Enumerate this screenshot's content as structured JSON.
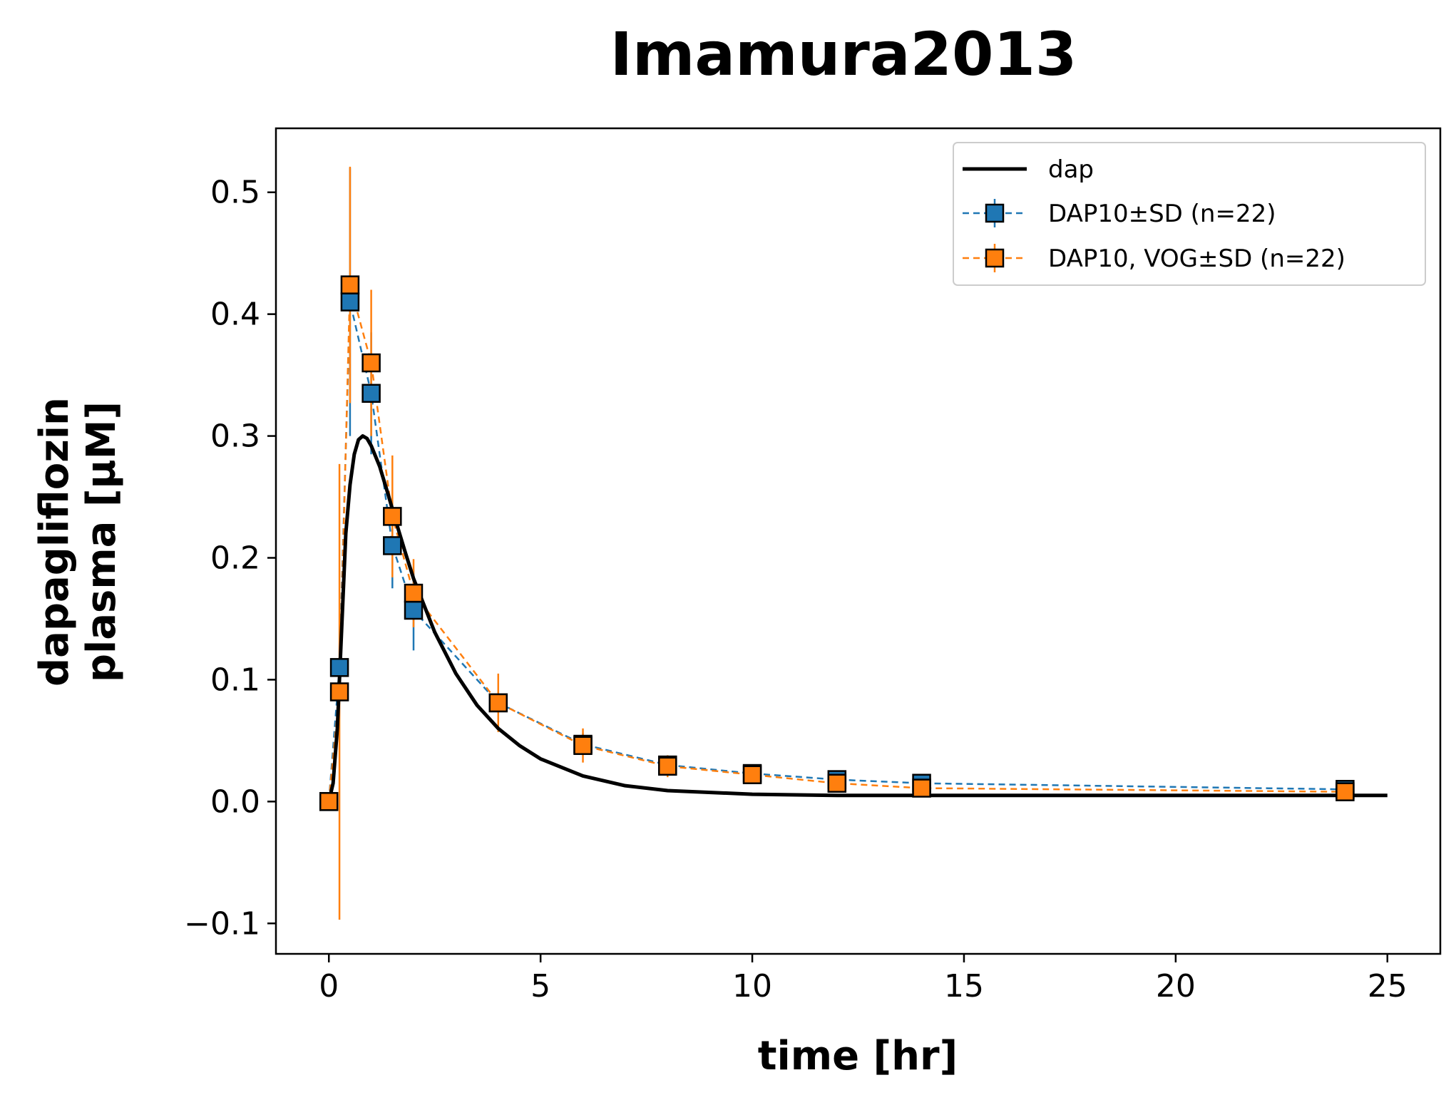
{
  "chart_data": {
    "type": "line",
    "title": "Imamura2013",
    "xlabel": "time [hr]",
    "ylabel_line1": "dapagliflozin",
    "ylabel_line2": "plasma [µM]",
    "xlim": [
      -1.25,
      26.25
    ],
    "ylim": [
      -0.125,
      0.5525
    ],
    "xticks": [
      0,
      5,
      10,
      15,
      20,
      25
    ],
    "yticks": [
      -0.1,
      0.0,
      0.1,
      0.2,
      0.3,
      0.4,
      0.5
    ],
    "xtick_labels": [
      "0",
      "5",
      "10",
      "15",
      "20",
      "25"
    ],
    "ytick_labels": [
      "−0.1",
      "0.0",
      "0.1",
      "0.2",
      "0.3",
      "0.4",
      "0.5"
    ],
    "legend_position": "upper right",
    "colors": {
      "dap": "#000000",
      "series1": "#1f77b4",
      "series2": "#ff7f0e"
    },
    "simulation": {
      "name": "dap",
      "x": [
        0,
        0.1,
        0.2,
        0.3,
        0.4,
        0.5,
        0.6,
        0.7,
        0.8,
        0.9,
        1.0,
        1.2,
        1.4,
        1.6,
        1.8,
        2.0,
        2.5,
        3.0,
        3.5,
        4.0,
        4.5,
        5.0,
        6.0,
        7.0,
        8.0,
        10.0,
        12.0,
        15.0,
        20.0,
        25.0
      ],
      "y": [
        0,
        0.015,
        0.06,
        0.14,
        0.22,
        0.26,
        0.285,
        0.297,
        0.3,
        0.298,
        0.292,
        0.275,
        0.252,
        0.228,
        0.205,
        0.183,
        0.139,
        0.105,
        0.079,
        0.06,
        0.046,
        0.035,
        0.021,
        0.013,
        0.009,
        0.006,
        0.005,
        0.005,
        0.005,
        0.005
      ]
    },
    "series": [
      {
        "name": "DAP10±SD (n=22)",
        "x": [
          0,
          0.25,
          0.5,
          1.0,
          1.5,
          2.0,
          4.0,
          6.0,
          8.0,
          10.0,
          12.0,
          14.0,
          24.0
        ],
        "y": [
          0,
          0.11,
          0.41,
          0.335,
          0.21,
          0.157,
          0.081,
          0.047,
          0.03,
          0.023,
          0.018,
          0.015,
          0.01
        ],
        "sd": [
          0,
          0.0,
          0.11,
          0.05,
          0.035,
          0.033,
          0.013,
          0.009,
          0.007,
          0.005,
          0.004,
          0.004,
          0.003
        ]
      },
      {
        "name": "DAP10, VOG±SD (n=22)",
        "x": [
          0,
          0.25,
          0.5,
          1.0,
          1.5,
          2.0,
          4.0,
          6.0,
          8.0,
          10.0,
          12.0,
          14.0,
          24.0
        ],
        "y": [
          0,
          0.09,
          0.424,
          0.36,
          0.234,
          0.171,
          0.081,
          0.046,
          0.029,
          0.022,
          0.015,
          0.011,
          0.008
        ],
        "sd": [
          0,
          0.187,
          0.097,
          0.06,
          0.05,
          0.028,
          0.024,
          0.014,
          0.009,
          0.006,
          0.004,
          0.003,
          0.003
        ]
      }
    ]
  }
}
